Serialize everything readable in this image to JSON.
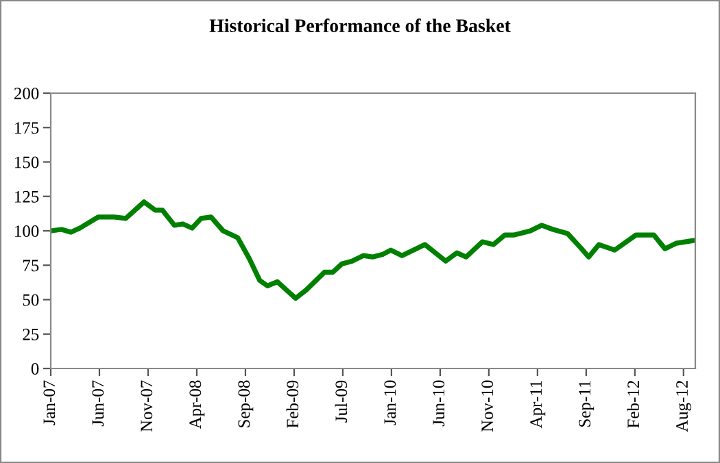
{
  "chart_data": {
    "type": "line",
    "title": "Historical Performance of the Basket",
    "x": [
      "2007-01-02",
      "2007-02-05",
      "2007-03-07",
      "2007-04-05",
      "2007-06-03",
      "2007-07-25",
      "2007-08-31",
      "2007-10-29",
      "2007-12-04",
      "2007-12-27",
      "2008-02-04",
      "2008-03-02",
      "2008-04-01",
      "2008-04-30",
      "2008-06-01",
      "2008-07-10",
      "2008-08-26",
      "2008-10-02",
      "2008-11-05",
      "2008-11-30",
      "2009-01-01",
      "2009-02-04",
      "2009-03-01",
      "2009-04-04",
      "2009-06-02",
      "2009-06-29",
      "2009-07-28",
      "2009-08-30",
      "2009-10-05",
      "2009-11-04",
      "2009-12-08",
      "2010-01-02",
      "2010-02-07",
      "2010-04-22",
      "2010-06-28",
      "2010-08-03",
      "2010-09-02",
      "2010-10-24",
      "2010-11-29",
      "2011-01-05",
      "2011-02-04",
      "2011-03-28",
      "2011-05-03",
      "2011-06-09",
      "2011-07-26",
      "2011-09-05",
      "2011-10-02",
      "2011-11-04",
      "2011-12-25",
      "2012-03-03",
      "2012-04-29",
      "2012-06-04",
      "2012-07-11",
      "2012-09-05"
    ],
    "series": [
      {
        "color": "#008000",
        "values": [
          100,
          101,
          99,
          102,
          110,
          110,
          109,
          121,
          115,
          115,
          104,
          105,
          102,
          109,
          110,
          100,
          95,
          80,
          64,
          60,
          63,
          56,
          51,
          57,
          70,
          70,
          76,
          78,
          82,
          81,
          83,
          86,
          82,
          90,
          78,
          84,
          81,
          92,
          90,
          97,
          97,
          100,
          104,
          101,
          98,
          88,
          81,
          90,
          86,
          97,
          97,
          87,
          91,
          93
        ]
      }
    ],
    "xlim": [
      "2007-01-01",
      "2012-09-10"
    ],
    "xticks": [
      {
        "value": "2007-01-01",
        "label": "Jan-07"
      },
      {
        "value": "2007-06-07",
        "label": "Jun-07"
      },
      {
        "value": "2007-11-11",
        "label": "Nov-07"
      },
      {
        "value": "2008-04-16",
        "label": "Apr-08"
      },
      {
        "value": "2008-09-20",
        "label": "Sep-08"
      },
      {
        "value": "2009-02-24",
        "label": "Feb-09"
      },
      {
        "value": "2009-07-31",
        "label": "Jul-09"
      },
      {
        "value": "2010-01-04",
        "label": "Jan-10"
      },
      {
        "value": "2010-06-10",
        "label": "Jun-10"
      },
      {
        "value": "2010-11-14",
        "label": "Nov-10"
      },
      {
        "value": "2011-04-20",
        "label": "Apr-11"
      },
      {
        "value": "2011-09-24",
        "label": "Sep-11"
      },
      {
        "value": "2012-02-28",
        "label": "Feb-12"
      },
      {
        "value": "2012-08-03",
        "label": "Aug-12"
      }
    ],
    "ylim": [
      0,
      200
    ],
    "yticks": [
      0,
      25,
      50,
      75,
      100,
      125,
      150,
      175,
      200
    ],
    "marker": "none",
    "line_style": "solid"
  }
}
